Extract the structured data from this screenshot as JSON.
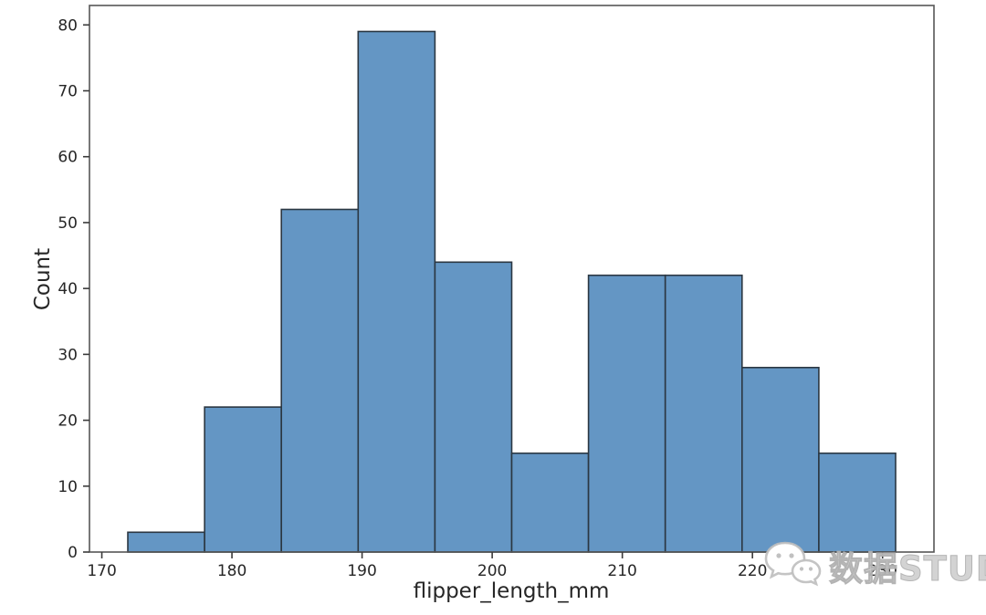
{
  "chart_data": {
    "type": "bar",
    "subtype": "histogram",
    "title": "",
    "xlabel": "flipper_length_mm",
    "ylabel": "Count",
    "bin_edges": [
      172,
      177.9,
      183.8,
      189.7,
      195.6,
      201.5,
      207.4,
      213.3,
      219.2,
      225.1,
      231
    ],
    "counts": [
      3,
      22,
      52,
      79,
      44,
      15,
      42,
      42,
      28,
      15
    ],
    "xticks": [
      170,
      180,
      190,
      200,
      210,
      220,
      230
    ],
    "yticks": [
      0,
      10,
      20,
      30,
      40,
      50,
      60,
      70,
      80
    ],
    "xlim": [
      169.05,
      233.95
    ],
    "ylim": [
      0,
      82.95
    ],
    "grid": false,
    "legend": false,
    "bar_color": "#6496c4",
    "bar_edge_color": "#2b3742",
    "spine_color": "#565656",
    "tick_color": "#3a3a3a",
    "tick_label_color": "#262626"
  },
  "watermark": {
    "text": "数据STUDIO",
    "icon": "wechat-icon",
    "color": "#c9c9c9"
  }
}
